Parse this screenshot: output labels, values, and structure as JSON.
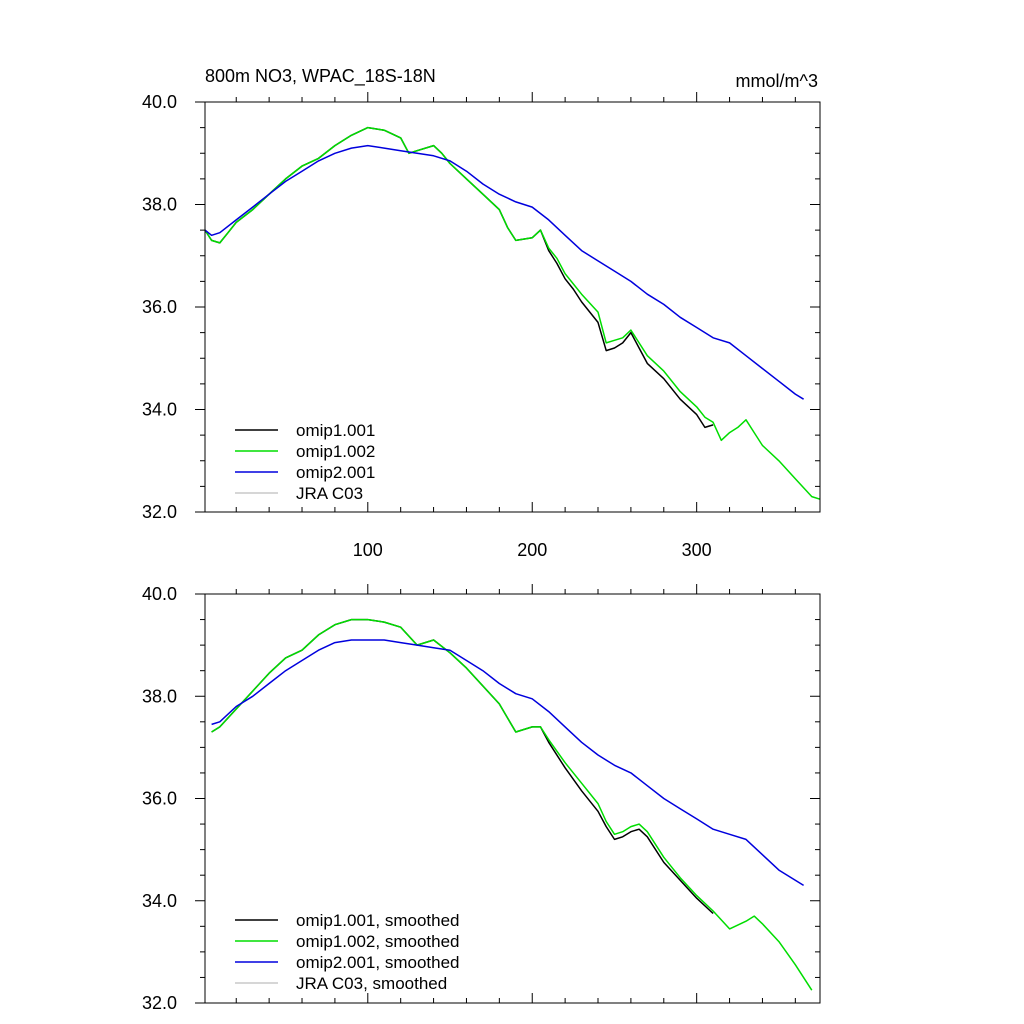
{
  "chart_data": [
    {
      "type": "line",
      "title": "800m NO3, WPAC_18S-18N",
      "units": "mmol/m^3",
      "xlim": [
        1,
        375
      ],
      "ylim": [
        32.0,
        40.0
      ],
      "xticks": [
        100,
        200,
        300
      ],
      "xtick_labels": [
        "100",
        "200",
        "300"
      ],
      "yticks": [
        32,
        34,
        36,
        38,
        40
      ],
      "ytick_labels": [
        "32.0",
        "34.0",
        "36.0",
        "38.0",
        "40.0"
      ],
      "grid": false,
      "legend_position": "bottom-left",
      "series": [
        {
          "name": "omip1.001",
          "color": "#000000",
          "x": [
            1,
            5,
            10,
            15,
            20,
            30,
            40,
            50,
            60,
            70,
            80,
            90,
            100,
            110,
            120,
            125,
            130,
            140,
            145,
            150,
            160,
            170,
            180,
            185,
            190,
            200,
            205,
            210,
            215,
            220,
            225,
            230,
            240,
            245,
            250,
            255,
            260,
            265,
            270,
            280,
            290,
            300,
            305,
            310
          ],
          "y": [
            37.5,
            37.3,
            37.25,
            37.45,
            37.65,
            37.9,
            38.2,
            38.5,
            38.75,
            38.9,
            39.15,
            39.35,
            39.5,
            39.45,
            39.3,
            39.0,
            39.05,
            39.15,
            39.0,
            38.8,
            38.5,
            38.2,
            37.9,
            37.55,
            37.3,
            37.35,
            37.5,
            37.1,
            36.85,
            36.55,
            36.35,
            36.1,
            35.7,
            35.15,
            35.2,
            35.3,
            35.5,
            35.2,
            34.9,
            34.6,
            34.2,
            33.9,
            33.65,
            33.7
          ]
        },
        {
          "name": "omip1.002",
          "color": "#00dd00",
          "x": [
            1,
            5,
            10,
            15,
            20,
            30,
            40,
            50,
            60,
            70,
            80,
            90,
            100,
            110,
            120,
            125,
            130,
            140,
            145,
            150,
            160,
            170,
            180,
            185,
            190,
            200,
            205,
            210,
            215,
            220,
            225,
            230,
            240,
            245,
            250,
            255,
            260,
            265,
            270,
            280,
            290,
            300,
            305,
            310,
            315,
            320,
            325,
            330,
            335,
            340,
            350,
            360,
            370,
            375
          ],
          "y": [
            37.5,
            37.3,
            37.25,
            37.45,
            37.65,
            37.9,
            38.2,
            38.5,
            38.75,
            38.9,
            39.15,
            39.35,
            39.5,
            39.45,
            39.3,
            39.0,
            39.05,
            39.15,
            39.0,
            38.8,
            38.5,
            38.2,
            37.9,
            37.55,
            37.3,
            37.35,
            37.5,
            37.15,
            36.95,
            36.65,
            36.45,
            36.25,
            35.9,
            35.3,
            35.35,
            35.4,
            35.55,
            35.3,
            35.05,
            34.75,
            34.35,
            34.05,
            33.85,
            33.75,
            33.4,
            33.55,
            33.65,
            33.8,
            33.55,
            33.3,
            33.0,
            32.65,
            32.3,
            32.25
          ]
        },
        {
          "name": "omip2.001",
          "color": "#0000dd",
          "x": [
            1,
            5,
            10,
            20,
            30,
            40,
            50,
            60,
            70,
            80,
            90,
            100,
            110,
            120,
            130,
            140,
            150,
            160,
            170,
            180,
            190,
            200,
            210,
            220,
            230,
            240,
            250,
            260,
            270,
            280,
            290,
            300,
            310,
            320,
            330,
            340,
            350,
            360,
            365
          ],
          "y": [
            37.5,
            37.4,
            37.45,
            37.7,
            37.95,
            38.2,
            38.45,
            38.65,
            38.85,
            39.0,
            39.1,
            39.15,
            39.1,
            39.05,
            39.0,
            38.95,
            38.85,
            38.65,
            38.4,
            38.2,
            38.05,
            37.95,
            37.7,
            37.4,
            37.1,
            36.9,
            36.7,
            36.5,
            36.25,
            36.05,
            35.8,
            35.6,
            35.4,
            35.3,
            35.05,
            34.8,
            34.55,
            34.3,
            34.2
          ]
        },
        {
          "name": "JRA C03",
          "color": "#c8c8c8",
          "x": [],
          "y": []
        }
      ]
    },
    {
      "type": "line",
      "xlim": [
        1,
        375
      ],
      "ylim": [
        32.0,
        40.0
      ],
      "xticks": [
        100,
        200,
        300
      ],
      "yticks": [
        32,
        34,
        36,
        38,
        40
      ],
      "ytick_labels": [
        "32.0",
        "34.0",
        "36.0",
        "38.0",
        "40.0"
      ],
      "grid": false,
      "legend_position": "bottom-left",
      "series": [
        {
          "name": "omip1.001, smoothed",
          "color": "#000000",
          "x": [
            5,
            10,
            20,
            30,
            40,
            50,
            60,
            70,
            80,
            90,
            100,
            110,
            120,
            130,
            140,
            150,
            160,
            170,
            180,
            190,
            200,
            205,
            210,
            220,
            230,
            240,
            245,
            250,
            255,
            260,
            265,
            270,
            280,
            290,
            300,
            310
          ],
          "y": [
            37.3,
            37.4,
            37.75,
            38.1,
            38.45,
            38.75,
            38.9,
            39.2,
            39.4,
            39.5,
            39.5,
            39.45,
            39.35,
            39.0,
            39.1,
            38.85,
            38.55,
            38.2,
            37.85,
            37.3,
            37.4,
            37.4,
            37.1,
            36.6,
            36.15,
            35.75,
            35.45,
            35.2,
            35.25,
            35.35,
            35.4,
            35.25,
            34.75,
            34.4,
            34.05,
            33.75
          ]
        },
        {
          "name": "omip1.002, smoothed",
          "color": "#00dd00",
          "x": [
            5,
            10,
            20,
            30,
            40,
            50,
            60,
            70,
            80,
            90,
            100,
            110,
            120,
            130,
            140,
            150,
            160,
            170,
            180,
            190,
            200,
            205,
            210,
            220,
            230,
            240,
            245,
            250,
            255,
            260,
            265,
            270,
            280,
            290,
            300,
            310,
            320,
            330,
            335,
            340,
            350,
            360,
            370
          ],
          "y": [
            37.3,
            37.4,
            37.75,
            38.1,
            38.45,
            38.75,
            38.9,
            39.2,
            39.4,
            39.5,
            39.5,
            39.45,
            39.35,
            39.0,
            39.1,
            38.85,
            38.55,
            38.2,
            37.85,
            37.3,
            37.4,
            37.4,
            37.15,
            36.7,
            36.3,
            35.9,
            35.55,
            35.3,
            35.35,
            35.45,
            35.5,
            35.35,
            34.85,
            34.45,
            34.1,
            33.8,
            33.45,
            33.6,
            33.7,
            33.55,
            33.2,
            32.75,
            32.25
          ]
        },
        {
          "name": "omip2.001, smoothed",
          "color": "#0000dd",
          "x": [
            5,
            10,
            20,
            30,
            40,
            50,
            60,
            70,
            80,
            90,
            100,
            110,
            120,
            130,
            140,
            150,
            160,
            170,
            180,
            190,
            200,
            210,
            220,
            230,
            240,
            250,
            260,
            270,
            280,
            290,
            300,
            310,
            320,
            330,
            340,
            350,
            360,
            365
          ],
          "y": [
            37.45,
            37.5,
            37.8,
            38.0,
            38.25,
            38.5,
            38.7,
            38.9,
            39.05,
            39.1,
            39.1,
            39.1,
            39.05,
            39.0,
            38.95,
            38.9,
            38.7,
            38.5,
            38.25,
            38.05,
            37.95,
            37.7,
            37.4,
            37.1,
            36.85,
            36.65,
            36.5,
            36.25,
            36.0,
            35.8,
            35.6,
            35.4,
            35.3,
            35.2,
            34.9,
            34.6,
            34.4,
            34.3
          ]
        },
        {
          "name": "JRA C03, smoothed",
          "color": "#c8c8c8",
          "x": [],
          "y": []
        }
      ]
    }
  ]
}
